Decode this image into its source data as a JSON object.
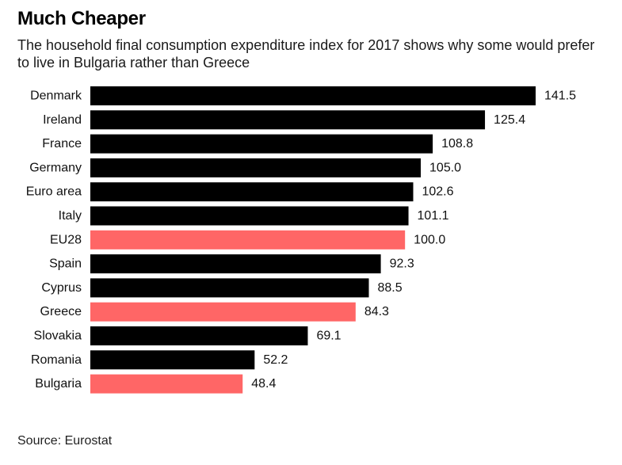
{
  "title": "Much Cheaper",
  "subtitle": "The household final consumption expenditure index for 2017 shows why some would prefer to live in Bulgaria rather than Greece",
  "source": "Source: Eurostat",
  "colors": {
    "default_bar": "#000000",
    "highlight_bar": "#ff6666"
  },
  "chart_data": {
    "type": "bar",
    "orientation": "horizontal",
    "title": "Much Cheaper",
    "xlabel": "",
    "ylabel": "",
    "xlim": [
      0,
      141.5
    ],
    "grid": false,
    "categories": [
      "Denmark",
      "Ireland",
      "France",
      "Germany",
      "Euro area",
      "Italy",
      "EU28",
      "Spain",
      "Cyprus",
      "Greece",
      "Slovakia",
      "Romania",
      "Bulgaria"
    ],
    "values": [
      141.5,
      125.4,
      108.8,
      105.0,
      102.6,
      101.1,
      100.0,
      92.3,
      88.5,
      84.3,
      69.1,
      52.2,
      48.4
    ],
    "value_labels": [
      "141.5",
      "125.4",
      "108.8",
      "105.0",
      "102.6",
      "101.1",
      "100.0",
      "92.3",
      "88.5",
      "84.3",
      "69.1",
      "52.2",
      "48.4"
    ],
    "highlighted": [
      "EU28",
      "Greece",
      "Bulgaria"
    ]
  }
}
